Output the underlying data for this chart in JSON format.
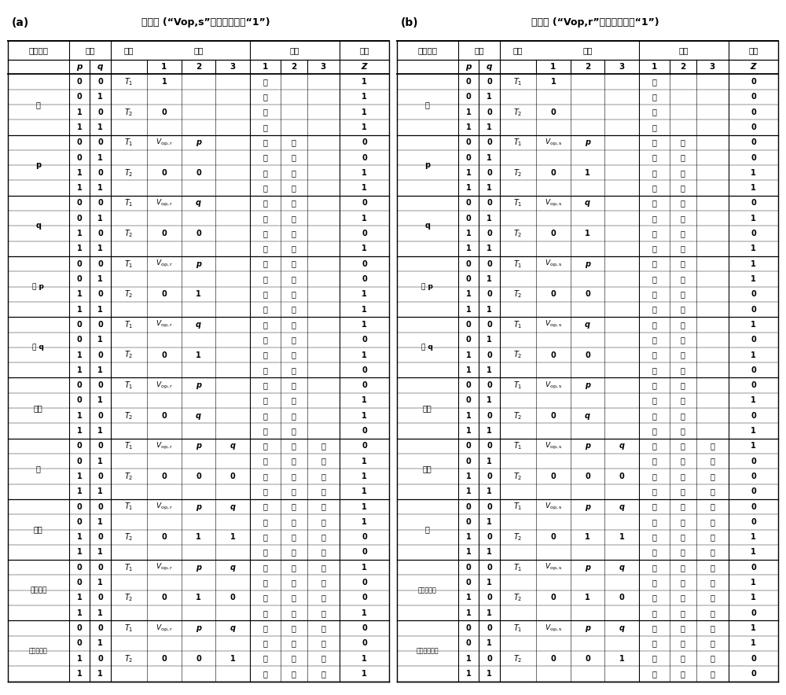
{
  "title_a": "方式一 (“Vop,s”作为输入变量“1”)",
  "title_b": "方式二 (“Vop,r”作为输入变量“1”)",
  "label_a": "(a)",
  "label_b": "(b)",
  "table_a": [
    [
      "真",
      "0",
      "0",
      "T1",
      "1",
      "",
      "",
      "低",
      "",
      "",
      "1"
    ],
    [
      "",
      "0",
      "1",
      "",
      "",
      "",
      "",
      "低",
      "",
      "",
      "1"
    ],
    [
      "",
      "1",
      "0",
      "T2",
      "0",
      "",
      "",
      "低",
      "",
      "",
      "1"
    ],
    [
      "",
      "1",
      "1",
      "",
      "",
      "",
      "",
      "低",
      "",
      "",
      "1"
    ],
    [
      "p",
      "0",
      "0",
      "T1",
      "Vop,r",
      "p",
      "",
      "高",
      "高",
      "",
      "0"
    ],
    [
      "",
      "0",
      "1",
      "",
      "",
      "",
      "",
      "高",
      "高",
      "",
      "0"
    ],
    [
      "",
      "1",
      "0",
      "T2",
      "0",
      "0",
      "",
      "高",
      "低",
      "",
      "1"
    ],
    [
      "",
      "1",
      "1",
      "",
      "",
      "",
      "",
      "高",
      "低",
      "",
      "1"
    ],
    [
      "q",
      "0",
      "0",
      "T1",
      "Vop,r",
      "q",
      "",
      "高",
      "高",
      "",
      "0"
    ],
    [
      "",
      "0",
      "1",
      "",
      "",
      "",
      "",
      "高",
      "低",
      "",
      "1"
    ],
    [
      "",
      "1",
      "0",
      "T2",
      "0",
      "0",
      "",
      "高",
      "高",
      "",
      "0"
    ],
    [
      "",
      "1",
      "1",
      "",
      "",
      "",
      "",
      "高",
      "低",
      "",
      "1"
    ],
    [
      "非 p",
      "0",
      "0",
      "T1",
      "Vop,r",
      "p",
      "",
      "高",
      "低",
      "",
      "0"
    ],
    [
      "",
      "0",
      "1",
      "",
      "",
      "",
      "",
      "高",
      "低",
      "",
      "0"
    ],
    [
      "",
      "1",
      "0",
      "T2",
      "0",
      "1",
      "",
      "高",
      "高",
      "",
      "1"
    ],
    [
      "",
      "1",
      "1",
      "",
      "",
      "",
      "",
      "高",
      "高",
      "",
      "1"
    ],
    [
      "非 q",
      "0",
      "0",
      "T1",
      "Vop,r",
      "q",
      "",
      "高",
      "低",
      "",
      "1"
    ],
    [
      "",
      "0",
      "1",
      "",
      "",
      "",
      "",
      "高",
      "高",
      "",
      "0"
    ],
    [
      "",
      "1",
      "0",
      "T2",
      "0",
      "1",
      "",
      "高",
      "低",
      "",
      "1"
    ],
    [
      "",
      "1",
      "1",
      "",
      "",
      "",
      "",
      "高",
      "高",
      "",
      "0"
    ],
    [
      "异或",
      "0",
      "0",
      "T1",
      "Vop,r",
      "p",
      "",
      "高",
      "高",
      "",
      "0"
    ],
    [
      "",
      "0",
      "1",
      "",
      "",
      "",
      "",
      "高",
      "低",
      "",
      "1"
    ],
    [
      "",
      "1",
      "0",
      "T2",
      "0",
      "q",
      "",
      "高",
      "低",
      "",
      "1"
    ],
    [
      "",
      "1",
      "1",
      "",
      "",
      "",
      "",
      "高",
      "高",
      "",
      "0"
    ],
    [
      "或",
      "0",
      "0",
      "T1",
      "Vop,r",
      "p",
      "q",
      "高",
      "高",
      "高",
      "0"
    ],
    [
      "",
      "0",
      "1",
      "",
      "",
      "",
      "",
      "高",
      "高",
      "低",
      "1"
    ],
    [
      "",
      "1",
      "0",
      "T2",
      "0",
      "0",
      "0",
      "高",
      "低",
      "低",
      "1"
    ],
    [
      "",
      "1",
      "1",
      "",
      "",
      "",
      "",
      "高",
      "低",
      "低",
      "1"
    ],
    [
      "与非",
      "0",
      "0",
      "T1",
      "Vop,r",
      "p",
      "q",
      "高",
      "低",
      "低",
      "1"
    ],
    [
      "",
      "0",
      "1",
      "",
      "",
      "",
      "",
      "高",
      "低",
      "低",
      "1"
    ],
    [
      "",
      "1",
      "0",
      "T2",
      "0",
      "1",
      "1",
      "高",
      "高",
      "高",
      "0"
    ],
    [
      "",
      "1",
      "1",
      "",
      "",
      "",
      "",
      "高",
      "高",
      "高",
      "0"
    ],
    [
      "实质蕴涵",
      "0",
      "0",
      "T1",
      "Vop,r",
      "p",
      "q",
      "高",
      "低",
      "低",
      "1"
    ],
    [
      "",
      "0",
      "1",
      "",
      "",
      "",
      "",
      "高",
      "高",
      "低",
      "0"
    ],
    [
      "",
      "1",
      "0",
      "T2",
      "0",
      "1",
      "0",
      "高",
      "高",
      "高",
      "0"
    ],
    [
      "",
      "1",
      "1",
      "",
      "",
      "",
      "",
      "高",
      "低",
      "低",
      "1"
    ],
    [
      "反实质蕴涵",
      "0",
      "0",
      "T1",
      "Vop,r",
      "p",
      "q",
      "高",
      "高",
      "高",
      "0"
    ],
    [
      "",
      "0",
      "1",
      "",
      "",
      "",
      "",
      "高",
      "高",
      "高",
      "0"
    ],
    [
      "",
      "1",
      "0",
      "T2",
      "0",
      "0",
      "1",
      "高",
      "低",
      "低",
      "1"
    ],
    [
      "",
      "1",
      "1",
      "",
      "",
      "",
      "",
      "高",
      "低",
      "低",
      "1"
    ]
  ],
  "table_b": [
    [
      "假",
      "0",
      "0",
      "T1",
      "1",
      "",
      "",
      "高",
      "",
      "",
      "0"
    ],
    [
      "",
      "0",
      "1",
      "",
      "",
      "",
      "",
      "高",
      "",
      "",
      "0"
    ],
    [
      "",
      "1",
      "0",
      "T2",
      "0",
      "",
      "",
      "高",
      "",
      "",
      "0"
    ],
    [
      "",
      "1",
      "1",
      "",
      "",
      "",
      "",
      "高",
      "",
      "",
      "0"
    ],
    [
      "p",
      "0",
      "0",
      "T1",
      "Vop,s",
      "p",
      "",
      "低",
      "高",
      "",
      "0"
    ],
    [
      "",
      "0",
      "1",
      "",
      "",
      "",
      "",
      "低",
      "高",
      "",
      "0"
    ],
    [
      "",
      "1",
      "0",
      "T2",
      "0",
      "1",
      "",
      "低",
      "低",
      "",
      "1"
    ],
    [
      "",
      "1",
      "1",
      "",
      "",
      "",
      "",
      "低",
      "低",
      "",
      "1"
    ],
    [
      "q",
      "0",
      "0",
      "T1",
      "Vop,s",
      "q",
      "",
      "低",
      "高",
      "",
      "0"
    ],
    [
      "",
      "0",
      "1",
      "",
      "",
      "",
      "",
      "低",
      "低",
      "",
      "1"
    ],
    [
      "",
      "1",
      "0",
      "T2",
      "0",
      "1",
      "",
      "低",
      "高",
      "",
      "0"
    ],
    [
      "",
      "1",
      "1",
      "",
      "",
      "",
      "",
      "低",
      "低",
      "",
      "1"
    ],
    [
      "非 p",
      "0",
      "0",
      "T1",
      "Vop,s",
      "p",
      "",
      "低",
      "低",
      "",
      "1"
    ],
    [
      "",
      "0",
      "1",
      "",
      "",
      "",
      "",
      "低",
      "低",
      "",
      "1"
    ],
    [
      "",
      "1",
      "0",
      "T2",
      "0",
      "0",
      "",
      "低",
      "高",
      "",
      "0"
    ],
    [
      "",
      "1",
      "1",
      "",
      "",
      "",
      "",
      "低",
      "高",
      "",
      "0"
    ],
    [
      "非 q",
      "0",
      "0",
      "T1",
      "Vop,s",
      "q",
      "",
      "低",
      "低",
      "",
      "1"
    ],
    [
      "",
      "0",
      "1",
      "",
      "",
      "",
      "",
      "低",
      "高",
      "",
      "0"
    ],
    [
      "",
      "1",
      "0",
      "T2",
      "0",
      "0",
      "",
      "低",
      "低",
      "",
      "1"
    ],
    [
      "",
      "1",
      "1",
      "",
      "",
      "",
      "",
      "低",
      "高",
      "",
      "0"
    ],
    [
      "同或",
      "0",
      "0",
      "T1",
      "Vop,s",
      "p",
      "",
      "低",
      "高",
      "",
      "0"
    ],
    [
      "",
      "0",
      "1",
      "",
      "",
      "",
      "",
      "低",
      "低",
      "",
      "1"
    ],
    [
      "",
      "1",
      "0",
      "T2",
      "0",
      "q",
      "",
      "低",
      "高",
      "",
      "0"
    ],
    [
      "",
      "1",
      "1",
      "",
      "",
      "",
      "",
      "低",
      "低",
      "",
      "1"
    ],
    [
      "或非",
      "0",
      "0",
      "T1",
      "Vop,s",
      "p",
      "q",
      "低",
      "低",
      "低",
      "1"
    ],
    [
      "",
      "0",
      "1",
      "",
      "",
      "",
      "",
      "低",
      "高",
      "低",
      "0"
    ],
    [
      "",
      "1",
      "0",
      "T2",
      "0",
      "0",
      "0",
      "低",
      "高",
      "高",
      "0"
    ],
    [
      "",
      "1",
      "1",
      "",
      "",
      "",
      "",
      "低",
      "高",
      "高",
      "0"
    ],
    [
      "与",
      "0",
      "0",
      "T1",
      "Vop,s",
      "p",
      "q",
      "低",
      "高",
      "高",
      "0"
    ],
    [
      "",
      "0",
      "1",
      "",
      "",
      "",
      "",
      "低",
      "高",
      "高",
      "0"
    ],
    [
      "",
      "1",
      "0",
      "T2",
      "0",
      "1",
      "1",
      "低",
      "低",
      "低",
      "1"
    ],
    [
      "",
      "1",
      "1",
      "",
      "",
      "",
      "",
      "低",
      "低",
      "低",
      "1"
    ],
    [
      "负实质蕴涵",
      "0",
      "0",
      "T1",
      "Vop,s",
      "p",
      "q",
      "低",
      "高",
      "高",
      "0"
    ],
    [
      "",
      "0",
      "1",
      "",
      "",
      "",
      "",
      "低",
      "低",
      "高",
      "1"
    ],
    [
      "",
      "1",
      "0",
      "T2",
      "0",
      "1",
      "0",
      "低",
      "低",
      "低",
      "1"
    ],
    [
      "",
      "1",
      "1",
      "",
      "",
      "",
      "",
      "低",
      "高",
      "高",
      "0"
    ],
    [
      "反负实质蕴涵",
      "0",
      "0",
      "T1",
      "Vop,s",
      "p",
      "q",
      "低",
      "低",
      "低",
      "1"
    ],
    [
      "",
      "0",
      "1",
      "",
      "",
      "",
      "",
      "低",
      "低",
      "低",
      "1"
    ],
    [
      "",
      "1",
      "0",
      "T2",
      "0",
      "0",
      "1",
      "低",
      "高",
      "高",
      "0"
    ],
    [
      "",
      "1",
      "1",
      "",
      "",
      "",
      "",
      "低",
      "高",
      "高",
      "0"
    ]
  ]
}
